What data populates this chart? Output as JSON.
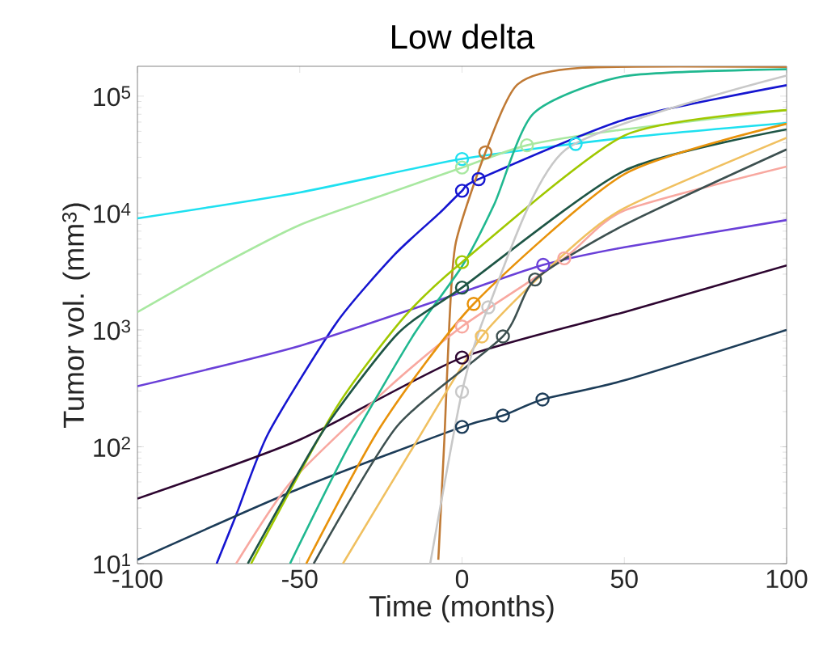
{
  "chart_data": {
    "type": "line",
    "title": "Low delta",
    "xlabel": "Time (months)",
    "ylabel": "Tumor vol. (mm$^{3}$)",
    "log": "y",
    "grid": false,
    "xlim": [
      -100,
      100
    ],
    "ylim": [
      10,
      180000
    ],
    "xticks": [
      -100,
      -50,
      0,
      50,
      100
    ],
    "yticks": [
      {
        "value": 10,
        "label": "10$^{1}$"
      },
      {
        "value": 100,
        "label": "10$^{2}$"
      },
      {
        "value": 1000,
        "label": "10$^{3}$"
      },
      {
        "value": 10000,
        "label": "10$^{4}$"
      },
      {
        "value": 100000,
        "label": "10$^{5}$"
      }
    ],
    "series": [
      {
        "color": "#1ee0f0",
        "x": [
          -100,
          -50,
          0,
          50,
          100
        ],
        "values": [
          9000,
          15000,
          29000,
          44000,
          59000
        ]
      },
      {
        "color": "#a8e8a0",
        "x": [
          -100,
          -75,
          -50,
          -25,
          0,
          20,
          50,
          100
        ],
        "values": [
          1420,
          3500,
          7900,
          14000,
          24500,
          38000,
          52000,
          76000
        ]
      },
      {
        "color": "#1515d0",
        "x": [
          -75.6,
          -69.6,
          -59.7,
          -38.7,
          -20.8,
          -6.9,
          0,
          5.1,
          50,
          100
        ],
        "values": [
          10,
          26,
          130,
          1150,
          4400,
          10000,
          15500,
          19500,
          63000,
          124000
        ]
      },
      {
        "color": "#6a40d8",
        "x": [
          -100,
          -50,
          0,
          25,
          50,
          100
        ],
        "values": [
          330,
          730,
          2100,
          3600,
          5100,
          8700
        ]
      },
      {
        "color": "#2d0530",
        "x": [
          -100,
          -50,
          0,
          50,
          100
        ],
        "values": [
          36,
          115,
          580,
          1420,
          3560
        ]
      },
      {
        "color": "#1c3c58",
        "x": [
          -100,
          -50,
          0,
          12.6,
          24.8,
          50,
          100
        ],
        "values": [
          10.8,
          44,
          148,
          185,
          254,
          370,
          1000
        ]
      },
      {
        "color": "#c07a35",
        "x": [
          -7.3,
          -5.4,
          -3.9,
          -1.9,
          7.2,
          17.1,
          37,
          100
        ],
        "values": [
          10.8,
          122,
          1150,
          5600,
          33000,
          126000,
          175000,
          178000
        ]
      },
      {
        "color": "#f8a8a0",
        "x": [
          -69.6,
          -52.7,
          -22.8,
          0,
          31.5,
          50,
          100
        ],
        "values": [
          10,
          50,
          318,
          1070,
          4100,
          10500,
          25000
        ]
      },
      {
        "color": "#20b890",
        "x": [
          -53,
          -35,
          -15,
          0,
          10,
          22,
          50,
          100
        ],
        "values": [
          10,
          100,
          900,
          3500,
          12000,
          71000,
          148000,
          170000
        ]
      },
      {
        "color": "#a0c800",
        "x": [
          -65,
          -38.7,
          -17.8,
          0,
          50,
          100
        ],
        "values": [
          10,
          217,
          1290,
          3800,
          46000,
          76000
        ]
      },
      {
        "color": "#1e5545",
        "x": [
          -66,
          -42.7,
          -19.8,
          0,
          50,
          100
        ],
        "values": [
          10,
          138,
          930,
          2300,
          23000,
          52000
        ]
      },
      {
        "color": "#e8920a",
        "x": [
          -48,
          -25,
          3.6,
          50,
          100
        ],
        "values": [
          10,
          150,
          1670,
          21500,
          58000
        ]
      },
      {
        "color": "#f0c060",
        "x": [
          -36.7,
          -15,
          6.1,
          30,
          50,
          100
        ],
        "values": [
          10,
          100,
          880,
          4100,
          11000,
          44000
        ]
      },
      {
        "color": "#3d5050",
        "x": [
          -45.7,
          -20,
          12.6,
          22.5,
          50,
          100
        ],
        "values": [
          10,
          150,
          880,
          2700,
          7900,
          35000
        ]
      },
      {
        "color": "#c8c8c8",
        "x": [
          -9.8,
          0,
          8.1,
          32,
          100
        ],
        "values": [
          10,
          296,
          1560,
          35000,
          150000
        ]
      },
      {
        "type": "scatter",
        "marker": "circle",
        "color": "#1ee0f0",
        "x": [
          0,
          35
        ],
        "values": [
          29000,
          39000
        ]
      },
      {
        "type": "scatter",
        "marker": "circle",
        "color": "#a8e8a0",
        "x": [
          0,
          20
        ],
        "values": [
          24500,
          38000
        ]
      },
      {
        "type": "scatter",
        "marker": "circle",
        "color": "#1515d0",
        "x": [
          0,
          5.1
        ],
        "values": [
          15500,
          19500
        ]
      },
      {
        "type": "scatter",
        "marker": "circle",
        "color": "#6a40d8",
        "x": [
          25
        ],
        "values": [
          3600
        ]
      },
      {
        "type": "scatter",
        "marker": "circle",
        "color": "#2d0530",
        "x": [
          0
        ],
        "values": [
          580
        ]
      },
      {
        "type": "scatter",
        "marker": "circle",
        "color": "#1c3c58",
        "x": [
          0,
          12.6,
          24.8
        ],
        "values": [
          148,
          185,
          254
        ]
      },
      {
        "type": "scatter",
        "marker": "circle",
        "color": "#c07a35",
        "x": [
          7.2
        ],
        "values": [
          33000
        ]
      },
      {
        "type": "scatter",
        "marker": "circle",
        "color": "#f8a8a0",
        "x": [
          0,
          31.5
        ],
        "values": [
          1070,
          4100
        ]
      },
      {
        "type": "scatter",
        "marker": "circle",
        "color": "#a0c800",
        "x": [
          0
        ],
        "values": [
          3800
        ]
      },
      {
        "type": "scatter",
        "marker": "circle",
        "color": "#1e5545",
        "x": [
          0
        ],
        "values": [
          2300
        ]
      },
      {
        "type": "scatter",
        "marker": "circle",
        "color": "#e8920a",
        "x": [
          3.6
        ],
        "values": [
          1670
        ]
      },
      {
        "type": "scatter",
        "marker": "circle",
        "color": "#f0c060",
        "x": [
          6.1
        ],
        "values": [
          880
        ]
      },
      {
        "type": "scatter",
        "marker": "circle",
        "color": "#3d5050",
        "x": [
          12.6,
          22.5
        ],
        "values": [
          880,
          2700
        ]
      },
      {
        "type": "scatter",
        "marker": "circle",
        "color": "#c8c8c8",
        "x": [
          0,
          8.1
        ],
        "values": [
          296,
          1560
        ]
      }
    ]
  }
}
